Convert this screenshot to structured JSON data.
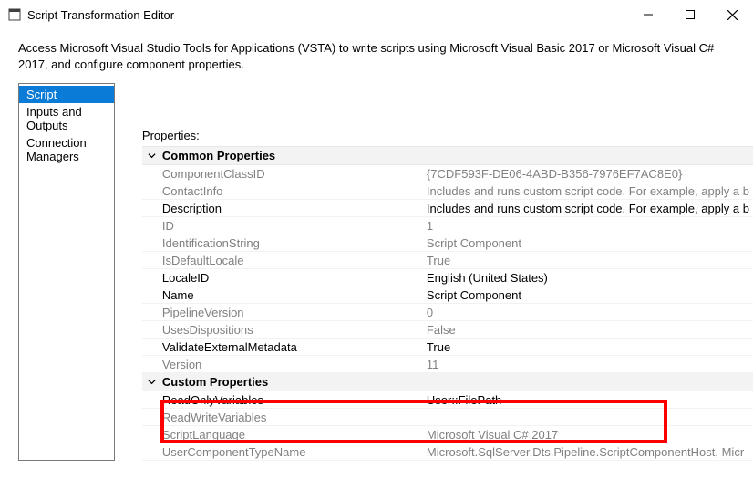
{
  "window": {
    "title": "Script Transformation Editor"
  },
  "description": "Access Microsoft Visual Studio Tools for Applications (VSTA) to write scripts using Microsoft Visual Basic 2017 or Microsoft Visual C# 2017, and configure component properties.",
  "sidebar": {
    "items": [
      {
        "label": "Script",
        "selected": true
      },
      {
        "label": "Inputs and Outputs",
        "selected": false
      },
      {
        "label": "Connection Managers",
        "selected": false
      }
    ]
  },
  "props_label": "Properties:",
  "groups": [
    {
      "title": "Common Properties",
      "rows": [
        {
          "label": "ComponentClassID",
          "value": "{7CDF593F-DE06-4ABD-B356-7976EF7AC8E0}",
          "label_strong": false,
          "value_strong": false
        },
        {
          "label": "ContactInfo",
          "value": "Includes and runs custom script code. For example, apply a b",
          "label_strong": false,
          "value_strong": false
        },
        {
          "label": "Description",
          "value": "Includes and runs custom script code. For example, apply a b",
          "label_strong": true,
          "value_strong": true
        },
        {
          "label": "ID",
          "value": "1",
          "label_strong": false,
          "value_strong": false
        },
        {
          "label": "IdentificationString",
          "value": "Script Component",
          "label_strong": false,
          "value_strong": false
        },
        {
          "label": "IsDefaultLocale",
          "value": "True",
          "label_strong": false,
          "value_strong": false
        },
        {
          "label": "LocaleID",
          "value": "English (United States)",
          "label_strong": true,
          "value_strong": true
        },
        {
          "label": "Name",
          "value": "Script Component",
          "label_strong": true,
          "value_strong": true
        },
        {
          "label": "PipelineVersion",
          "value": "0",
          "label_strong": false,
          "value_strong": false
        },
        {
          "label": "UsesDispositions",
          "value": "False",
          "label_strong": false,
          "value_strong": false
        },
        {
          "label": "ValidateExternalMetadata",
          "value": "True",
          "label_strong": true,
          "value_strong": true
        },
        {
          "label": "Version",
          "value": "11",
          "label_strong": false,
          "value_strong": false
        }
      ]
    },
    {
      "title": "Custom Properties",
      "rows": [
        {
          "label": "ReadOnlyVariables",
          "value": "User::FilePath",
          "label_strong": true,
          "value_strong": true
        },
        {
          "label": "ReadWriteVariables",
          "value": "",
          "label_strong": false,
          "value_strong": false
        },
        {
          "label": "ScriptLanguage",
          "value": "Microsoft Visual C# 2017",
          "label_strong": false,
          "value_strong": false
        },
        {
          "label": "UserComponentTypeName",
          "value": "Microsoft.SqlServer.Dts.Pipeline.ScriptComponentHost, Micr",
          "label_strong": false,
          "value_strong": false
        }
      ]
    }
  ]
}
